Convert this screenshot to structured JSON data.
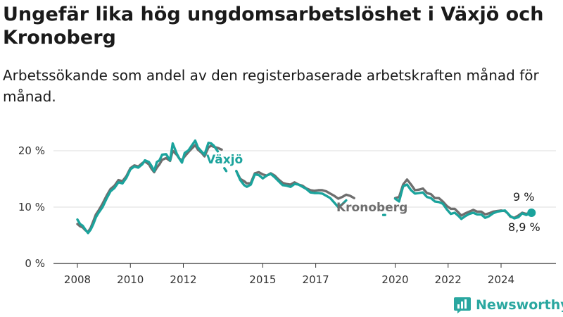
{
  "title": "Ungefär lika hög ungdomsarbetslöshet i Växjö och Kronoberg",
  "subtitle": "Arbetssökande som andel av den registerbaserade arbetskraften månad för månad.",
  "brand": "Newsworthy",
  "colors": {
    "vaxjo": "#1ba39c",
    "kronoberg": "#6e6e6e",
    "grid": "#dddddd",
    "axis": "#333333"
  },
  "chart_data": {
    "type": "line",
    "title": "Ungefär lika hög ungdomsarbetslöshet i Växjö och Kronoberg",
    "subtitle": "Arbetssökande som andel av den registerbaserade arbetskraften månad för månad.",
    "xlabel": "",
    "ylabel": "",
    "xlim": [
      2008,
      2025.5
    ],
    "ylim": [
      0,
      22
    ],
    "x_ticks": [
      2008,
      2010,
      2012,
      2015,
      2017,
      2020,
      2022,
      2024
    ],
    "y_ticks": [
      0,
      10,
      20
    ],
    "y_tick_labels": [
      "0 %",
      "10 %",
      "20 %"
    ],
    "grid": true,
    "legend": "inline labels",
    "series": [
      {
        "name": "Växjö",
        "color": "#1ba39c",
        "segments": [
          [
            [
              2008.0,
              7.8
            ],
            [
              2008.1,
              7.0
            ],
            [
              2008.2,
              6.7
            ],
            [
              2008.3,
              6.0
            ],
            [
              2008.4,
              5.4
            ],
            [
              2008.5,
              6.0
            ],
            [
              2008.6,
              7.0
            ],
            [
              2008.7,
              8.2
            ],
            [
              2008.8,
              9.0
            ],
            [
              2008.95,
              10.0
            ],
            [
              2009.1,
              11.5
            ],
            [
              2009.25,
              12.8
            ],
            [
              2009.4,
              13.4
            ],
            [
              2009.55,
              14.4
            ],
            [
              2009.7,
              14.2
            ],
            [
              2009.85,
              15.2
            ],
            [
              2010.0,
              16.7
            ],
            [
              2010.15,
              17.2
            ],
            [
              2010.3,
              17.0
            ],
            [
              2010.45,
              17.6
            ],
            [
              2010.55,
              18.3
            ],
            [
              2010.7,
              18.0
            ],
            [
              2010.8,
              17.3
            ],
            [
              2010.9,
              16.4
            ],
            [
              2011.0,
              18.0
            ],
            [
              2011.1,
              18.3
            ],
            [
              2011.2,
              19.3
            ],
            [
              2011.35,
              19.4
            ],
            [
              2011.5,
              18.3
            ],
            [
              2011.6,
              21.3
            ],
            [
              2011.75,
              19.5
            ],
            [
              2011.85,
              18.6
            ],
            [
              2011.95,
              17.9
            ],
            [
              2012.05,
              19.6
            ],
            [
              2012.2,
              20.1
            ],
            [
              2012.3,
              20.8
            ],
            [
              2012.45,
              21.8
            ],
            [
              2012.55,
              20.6
            ],
            [
              2012.7,
              19.8
            ],
            [
              2012.8,
              19.3
            ],
            [
              2012.95,
              21.4
            ],
            [
              2013.05,
              21.3
            ],
            [
              2013.15,
              20.9
            ],
            [
              2013.3,
              19.9
            ]
          ],
          [
            [
              2013.55,
              16.9
            ],
            [
              2013.62,
              16.4
            ]
          ],
          [
            [
              2014.0,
              16.4
            ],
            [
              2014.15,
              14.8
            ],
            [
              2014.3,
              13.9
            ],
            [
              2014.4,
              13.6
            ],
            [
              2014.55,
              14.0
            ],
            [
              2014.7,
              15.8
            ],
            [
              2014.85,
              15.7
            ],
            [
              2015.0,
              15.1
            ],
            [
              2015.15,
              15.6
            ],
            [
              2015.3,
              15.9
            ],
            [
              2015.45,
              15.3
            ],
            [
              2015.6,
              14.6
            ],
            [
              2015.75,
              13.9
            ],
            [
              2015.9,
              13.8
            ],
            [
              2016.05,
              13.6
            ],
            [
              2016.2,
              14.1
            ],
            [
              2016.35,
              14.0
            ],
            [
              2016.5,
              13.6
            ],
            [
              2016.65,
              13.2
            ],
            [
              2016.8,
              12.6
            ],
            [
              2016.95,
              12.5
            ],
            [
              2017.1,
              12.5
            ],
            [
              2017.25,
              12.4
            ],
            [
              2017.4,
              12.0
            ],
            [
              2017.55,
              11.6
            ],
            [
              2017.7,
              10.8
            ],
            [
              2017.85,
              10.0
            ],
            [
              2018.0,
              10.5
            ],
            [
              2018.15,
              11.2
            ]
          ],
          [
            [
              2019.55,
              8.6
            ],
            [
              2019.62,
              8.6
            ]
          ],
          [
            [
              2020.0,
              11.5
            ],
            [
              2020.15,
              11.0
            ],
            [
              2020.3,
              13.7
            ],
            [
              2020.45,
              14.0
            ],
            [
              2020.6,
              13.0
            ],
            [
              2020.75,
              12.4
            ],
            [
              2020.9,
              12.5
            ],
            [
              2021.05,
              12.6
            ],
            [
              2021.2,
              11.8
            ],
            [
              2021.35,
              11.6
            ],
            [
              2021.5,
              11.0
            ],
            [
              2021.65,
              10.9
            ],
            [
              2021.8,
              10.6
            ],
            [
              2021.95,
              9.6
            ],
            [
              2022.1,
              8.8
            ],
            [
              2022.25,
              9.0
            ],
            [
              2022.4,
              8.4
            ],
            [
              2022.5,
              7.9
            ],
            [
              2022.65,
              8.4
            ],
            [
              2022.8,
              8.8
            ],
            [
              2022.95,
              9.0
            ],
            [
              2023.1,
              8.7
            ],
            [
              2023.25,
              8.7
            ],
            [
              2023.4,
              8.1
            ],
            [
              2023.55,
              8.4
            ],
            [
              2023.7,
              8.9
            ],
            [
              2023.85,
              9.2
            ],
            [
              2024.0,
              9.3
            ],
            [
              2024.15,
              9.4
            ],
            [
              2024.25,
              8.9
            ],
            [
              2024.35,
              8.4
            ],
            [
              2024.5,
              8.0
            ],
            [
              2024.65,
              8.2
            ],
            [
              2024.8,
              8.9
            ],
            [
              2024.95,
              8.6
            ],
            [
              2025.05,
              8.8
            ],
            [
              2025.15,
              8.9
            ]
          ]
        ]
      },
      {
        "name": "Kronoberg",
        "color": "#6e6e6e",
        "segments": [
          [
            [
              2008.0,
              7.0
            ],
            [
              2008.1,
              6.6
            ],
            [
              2008.2,
              6.4
            ],
            [
              2008.3,
              5.9
            ],
            [
              2008.4,
              5.6
            ],
            [
              2008.5,
              6.3
            ],
            [
              2008.6,
              7.5
            ],
            [
              2008.7,
              8.7
            ],
            [
              2008.8,
              9.4
            ],
            [
              2008.95,
              10.6
            ],
            [
              2009.1,
              12.0
            ],
            [
              2009.25,
              13.2
            ],
            [
              2009.4,
              13.8
            ],
            [
              2009.55,
              14.8
            ],
            [
              2009.7,
              14.6
            ],
            [
              2009.85,
              15.5
            ],
            [
              2010.0,
              16.9
            ],
            [
              2010.15,
              17.4
            ],
            [
              2010.3,
              17.2
            ],
            [
              2010.45,
              17.8
            ],
            [
              2010.55,
              18.1
            ],
            [
              2010.7,
              17.6
            ],
            [
              2010.8,
              16.8
            ],
            [
              2010.9,
              16.2
            ],
            [
              2011.0,
              17.0
            ],
            [
              2011.1,
              17.6
            ],
            [
              2011.2,
              18.4
            ],
            [
              2011.35,
              18.7
            ],
            [
              2011.5,
              18.2
            ],
            [
              2011.6,
              20.0
            ],
            [
              2011.75,
              19.3
            ],
            [
              2011.85,
              18.6
            ],
            [
              2011.95,
              18.3
            ],
            [
              2012.05,
              19.0
            ],
            [
              2012.2,
              19.8
            ],
            [
              2012.3,
              20.3
            ],
            [
              2012.45,
              21.0
            ],
            [
              2012.55,
              20.2
            ],
            [
              2012.7,
              19.6
            ],
            [
              2012.8,
              19.0
            ],
            [
              2012.95,
              20.6
            ],
            [
              2013.05,
              20.9
            ],
            [
              2013.15,
              20.7
            ],
            [
              2013.3,
              20.5
            ],
            [
              2013.45,
              20.2
            ]
          ],
          [
            [
              2014.0,
              16.4
            ],
            [
              2014.15,
              15.0
            ],
            [
              2014.3,
              14.6
            ],
            [
              2014.4,
              14.2
            ],
            [
              2014.55,
              14.3
            ],
            [
              2014.7,
              16.0
            ],
            [
              2014.85,
              16.2
            ],
            [
              2015.0,
              15.8
            ],
            [
              2015.15,
              15.6
            ],
            [
              2015.3,
              16.0
            ],
            [
              2015.45,
              15.6
            ],
            [
              2015.6,
              14.9
            ],
            [
              2015.75,
              14.3
            ],
            [
              2015.9,
              14.1
            ],
            [
              2016.05,
              14.0
            ],
            [
              2016.2,
              14.4
            ],
            [
              2016.35,
              14.0
            ],
            [
              2016.5,
              13.8
            ],
            [
              2016.65,
              13.3
            ],
            [
              2016.8,
              13.0
            ],
            [
              2016.95,
              12.9
            ],
            [
              2017.1,
              13.0
            ],
            [
              2017.25,
              13.0
            ],
            [
              2017.4,
              12.8
            ],
            [
              2017.55,
              12.4
            ],
            [
              2017.7,
              12.0
            ],
            [
              2017.85,
              11.5
            ],
            [
              2018.0,
              11.8
            ],
            [
              2018.15,
              12.2
            ],
            [
              2018.3,
              12.0
            ],
            [
              2018.45,
              11.6
            ]
          ],
          [
            [
              2020.0,
              11.6
            ],
            [
              2020.15,
              11.8
            ],
            [
              2020.3,
              14.0
            ],
            [
              2020.45,
              14.9
            ],
            [
              2020.6,
              14.0
            ],
            [
              2020.75,
              13.0
            ],
            [
              2020.9,
              13.1
            ],
            [
              2021.05,
              13.3
            ],
            [
              2021.2,
              12.5
            ],
            [
              2021.35,
              12.3
            ],
            [
              2021.5,
              11.6
            ],
            [
              2021.65,
              11.6
            ],
            [
              2021.8,
              11.0
            ],
            [
              2021.95,
              10.2
            ],
            [
              2022.1,
              9.7
            ],
            [
              2022.25,
              9.7
            ],
            [
              2022.4,
              9.0
            ],
            [
              2022.5,
              8.5
            ],
            [
              2022.65,
              8.9
            ],
            [
              2022.8,
              9.2
            ],
            [
              2022.95,
              9.5
            ],
            [
              2023.1,
              9.2
            ],
            [
              2023.25,
              9.2
            ],
            [
              2023.4,
              8.7
            ],
            [
              2023.55,
              8.9
            ],
            [
              2023.7,
              9.2
            ],
            [
              2023.85,
              9.3
            ],
            [
              2024.0,
              9.4
            ],
            [
              2024.15,
              9.3
            ],
            [
              2024.25,
              8.9
            ],
            [
              2024.35,
              8.3
            ],
            [
              2024.5,
              8.1
            ],
            [
              2024.65,
              8.5
            ],
            [
              2024.8,
              9.0
            ],
            [
              2024.95,
              8.8
            ],
            [
              2025.05,
              8.9
            ],
            [
              2025.15,
              9.0
            ]
          ]
        ]
      }
    ],
    "annotations": {
      "vaxjo_label": "Växjö",
      "kronoberg_label": "Kronoberg",
      "end_value_top": "9 %",
      "end_value_bottom": "8,9 %"
    },
    "end_point": {
      "x": 2025.15,
      "y": 9.0
    }
  }
}
